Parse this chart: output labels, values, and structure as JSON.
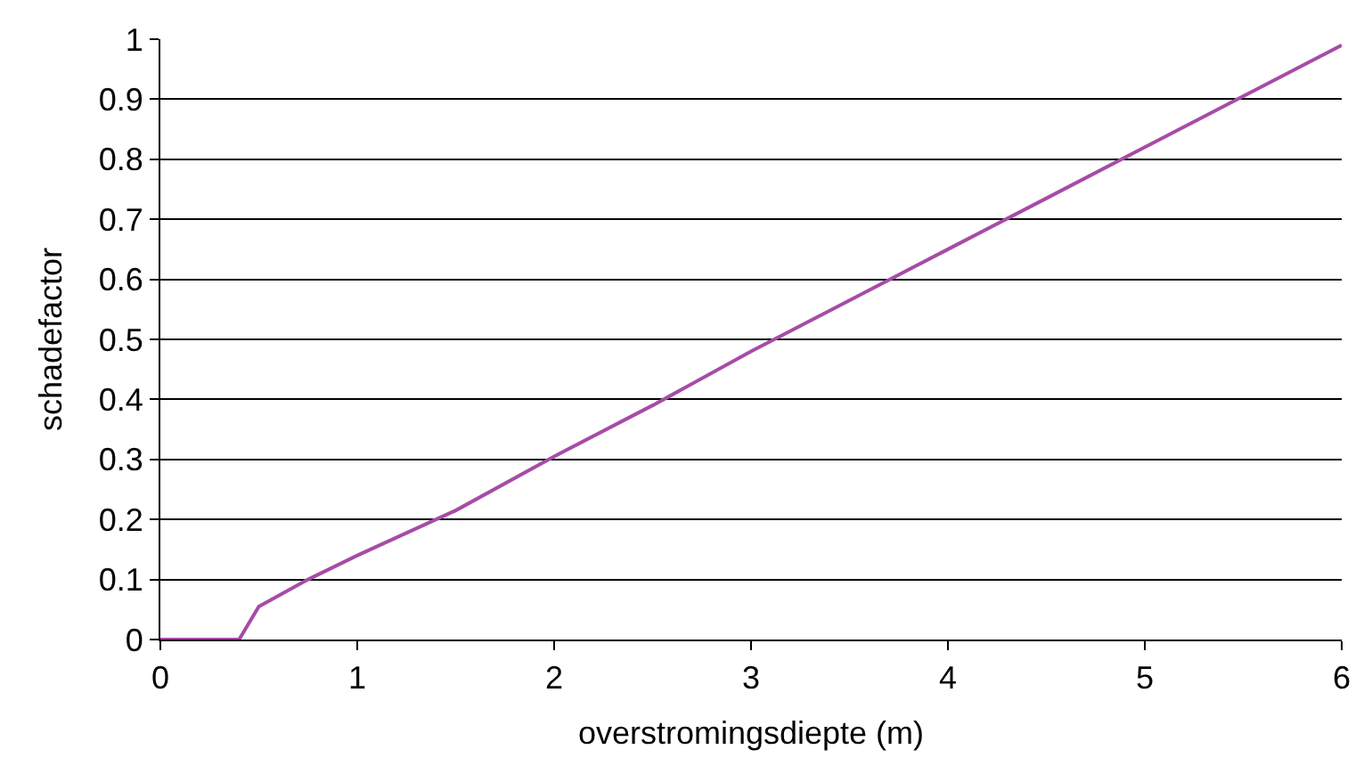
{
  "chart_data": {
    "type": "line",
    "xlabel": "overstromingsdiepte (m)",
    "ylabel": "schadefactor",
    "x": [
      0,
      0.4,
      0.5,
      0.75,
      1,
      1.5,
      2,
      2.5,
      3,
      3.5,
      4,
      4.5,
      5,
      5.5,
      6
    ],
    "series": [
      {
        "color": "#a64ca6",
        "values": [
          0,
          0,
          0.055,
          0.1,
          0.14,
          0.215,
          0.305,
          0.39,
          0.48,
          0.565,
          0.65,
          0.735,
          0.82,
          0.905,
          0.99
        ]
      }
    ],
    "xlim": [
      0,
      6
    ],
    "xticks": [
      0,
      1,
      2,
      3,
      4,
      5,
      6
    ],
    "ylim": [
      0,
      1
    ],
    "yticks": [
      0,
      0.1,
      0.2,
      0.3,
      0.4,
      0.5,
      0.6,
      0.7,
      0.8,
      0.9,
      1
    ],
    "grid": "y",
    "marker": "none",
    "line_style": "solid"
  }
}
